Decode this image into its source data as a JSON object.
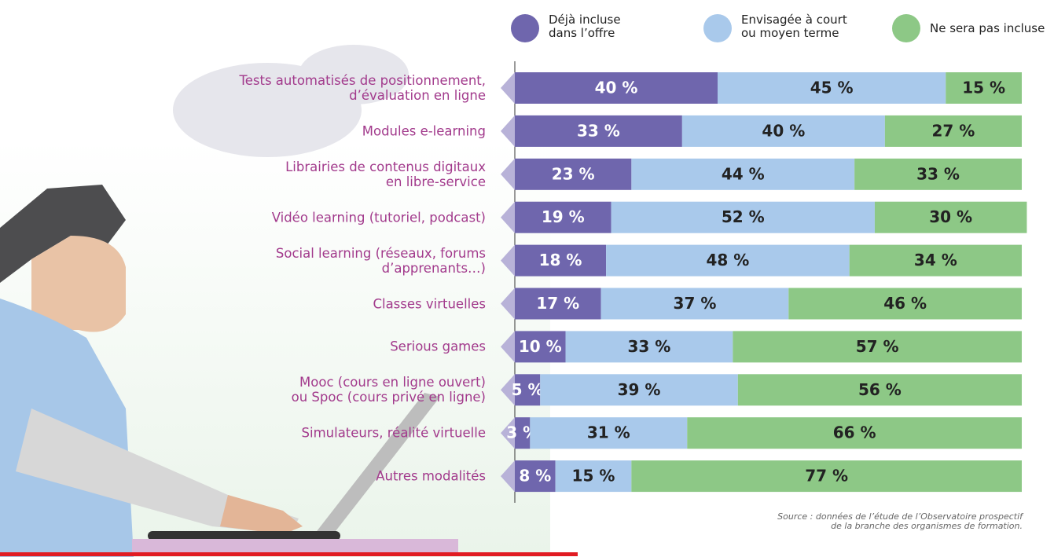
{
  "chart_data": {
    "type": "stacked-bar-horizontal",
    "categories": [
      "Tests automatisés de positionnement,\nd’évaluation en ligne",
      "Modules e-learning",
      "Librairies de contenus digitaux\nen libre-service",
      "Vidéo learning (tutoriel, podcast)",
      "Social learning (réseaux, forums\nd’apprenants…)",
      "Classes virtuelles",
      "Serious games",
      "Mooc (cours en ligne ouvert)\nou Spoc (cours privé en ligne)",
      "Simulateurs, réalité virtuelle",
      "Autres modalités"
    ],
    "series": [
      {
        "name": "Déjà incluse\ndans l’offre",
        "color": "#6f66ad",
        "values": [
          40,
          33,
          23,
          19,
          18,
          17,
          10,
          5,
          3,
          8
        ],
        "value_labels": [
          "40 %",
          "33 %",
          "23 %",
          "19 %",
          "18 %",
          "17 %",
          "10 %",
          "5 %",
          "3 %",
          "8 %"
        ]
      },
      {
        "name": "Envisagée à court\nou moyen terme",
        "color": "#a9c9eb",
        "values": [
          45,
          40,
          44,
          52,
          48,
          37,
          33,
          39,
          31,
          15
        ],
        "value_labels": [
          "45 %",
          "40 %",
          "44 %",
          "52 %",
          "48 %",
          "37 %",
          "33 %",
          "39 %",
          "31 %",
          "15 %"
        ]
      },
      {
        "name": "Ne sera pas incluse",
        "color": "#8dc886",
        "values": [
          15,
          27,
          33,
          30,
          34,
          46,
          57,
          56,
          66,
          77
        ],
        "value_labels": [
          "15 %",
          "27 %",
          "33 %",
          "30 %",
          "34 %",
          "46 %",
          "57 %",
          "56 %",
          "66 %",
          "77 %"
        ]
      }
    ],
    "xlim": [
      0,
      100
    ],
    "source": "Source : données de l’étude de l’Observatoire prospectif\nde la branche des organismes de formation."
  }
}
